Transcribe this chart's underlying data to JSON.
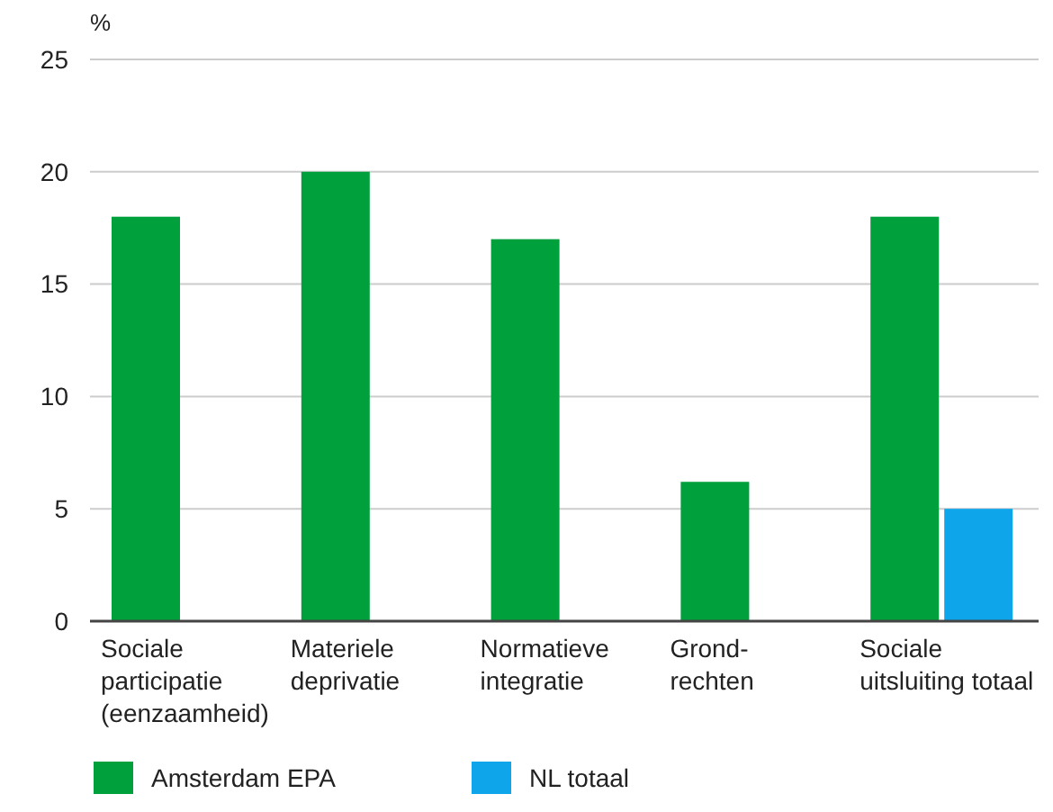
{
  "chart_data": {
    "type": "bar",
    "ylabel": "%",
    "categories": [
      "Sociale\nparticipatie\n(eenzaamheid)",
      "Materiele\ndeprivatie",
      "Normatieve\nintegratie",
      "Grond-\nrechten",
      "Sociale\nuitsluiting totaal"
    ],
    "series": [
      {
        "name": "Amsterdam EPA",
        "color": "#00a03c",
        "values": [
          18,
          20,
          17,
          6.2,
          18
        ]
      },
      {
        "name": "NL totaal",
        "color": "#0ea5ea",
        "values": [
          null,
          null,
          null,
          null,
          5
        ]
      }
    ],
    "ylim": [
      0,
      25
    ],
    "yticks": [
      0,
      5,
      10,
      15,
      20,
      25
    ],
    "grid": "y",
    "legend": "bottom"
  }
}
